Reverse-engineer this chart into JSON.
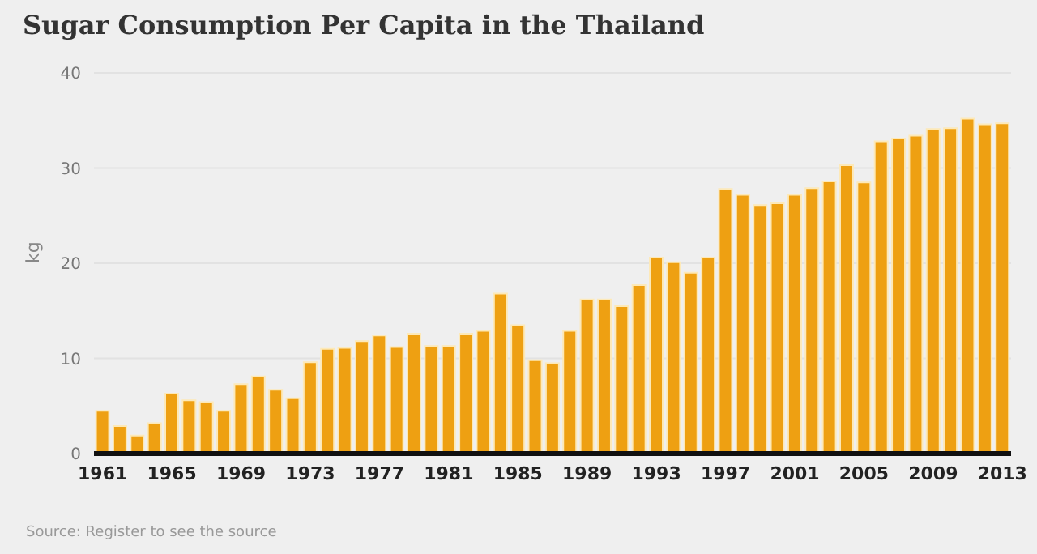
{
  "chart_data": {
    "type": "bar",
    "title": "Sugar Consumption Per Capita in the Thailand",
    "ylabel": "kg",
    "annotations": [
      "Source: Register to see the source"
    ],
    "categories": [
      "1961",
      null,
      null,
      null,
      "1965",
      null,
      null,
      null,
      "1969",
      null,
      null,
      null,
      "1973",
      null,
      null,
      null,
      "1977",
      null,
      null,
      null,
      "1981",
      null,
      null,
      null,
      "1985",
      null,
      null,
      null,
      "1989",
      null,
      null,
      null,
      "1993",
      null,
      null,
      null,
      "1997",
      null,
      null,
      null,
      "2001",
      null,
      null,
      null,
      "2005",
      null,
      null,
      null,
      "2009",
      null,
      null,
      null,
      "2013"
    ],
    "values": [
      4.5,
      2.9,
      1.9,
      3.2,
      6.3,
      5.6,
      5.4,
      4.5,
      7.3,
      8.1,
      6.7,
      5.8,
      9.6,
      11.0,
      11.1,
      11.8,
      12.4,
      11.2,
      12.6,
      11.3,
      11.3,
      12.6,
      12.9,
      16.8,
      13.5,
      9.8,
      9.5,
      12.9,
      16.2,
      16.2,
      15.5,
      17.7,
      20.6,
      20.1,
      19.0,
      20.6,
      27.8,
      27.2,
      26.1,
      26.3,
      27.2,
      27.9,
      28.6,
      30.3,
      28.5,
      32.8,
      33.1,
      33.4,
      34.1,
      34.2,
      35.2,
      34.6,
      34.7
    ],
    "color": "#eea012",
    "ylim": [
      0,
      40
    ],
    "yticks": [
      0,
      10,
      20,
      30,
      40
    ],
    "grid": "y",
    "legend": false
  }
}
